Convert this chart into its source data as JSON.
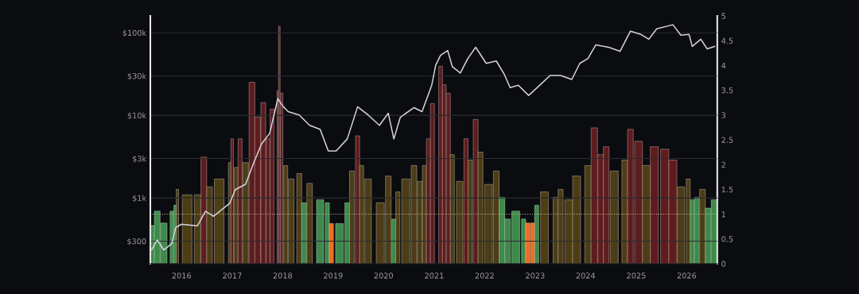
{
  "chart_data": {
    "type": "bar",
    "x": [
      "2015-05-29",
      "2015-07-09",
      "2015-08-25",
      "2015-10-22",
      "2015-11-20",
      "2016-01-01",
      "2016-04-25",
      "2016-06-22",
      "2016-08-19",
      "2016-12-14",
      "2017-01-23",
      "2017-04-08",
      "2017-06-05",
      "2017-08-02",
      "2017-09-29",
      "2017-11-27",
      "2018-01-06",
      "2018-02-10",
      "2018-05-01",
      "2018-07-15",
      "2018-09-29",
      "2018-11-27",
      "2019-01-23",
      "2019-04-13",
      "2019-06-27",
      "2019-09-11",
      "2019-12-02",
      "2020-02-04",
      "2020-03-15",
      "2020-05-01",
      "2020-08-08",
      "2020-10-05",
      "2020-12-14",
      "2021-01-12",
      "2021-02-16",
      "2021-04-08",
      "2021-05-12",
      "2021-07-09",
      "2021-09-01",
      "2021-10-28",
      "2022-01-12",
      "2022-03-26",
      "2022-05-24",
      "2022-07-04",
      "2022-09-01",
      "2022-11-15",
      "2023-02-04",
      "2023-04-19",
      "2023-07-04",
      "2023-09-23",
      "2023-11-20",
      "2024-01-18",
      "2024-03-15",
      "2024-06-16",
      "2024-09-06",
      "2024-11-20",
      "2025-02-04",
      "2025-04-02",
      "2025-05-29",
      "2025-09-23",
      "2025-11-20",
      "2026-01-18",
      "2026-02-10",
      "2026-04-13",
      "2026-05-29",
      "2026-07-21"
    ],
    "series": [
      {
        "type": "line",
        "color": "#d4d4d8",
        "values": [
          235,
          310,
          235,
          280,
          440,
          480,
          460,
          690,
          600,
          860,
          1260,
          1470,
          2640,
          4520,
          6050,
          15900,
          12700,
          11100,
          10100,
          7570,
          6780,
          3700,
          3700,
          5180,
          12700,
          10100,
          7570,
          10600,
          5180,
          9490,
          12400,
          11100,
          23200,
          40700,
          53300,
          61000,
          38900,
          32500,
          48800,
          66700,
          42600,
          45500,
          31100,
          21700,
          23200,
          17400,
          23200,
          30400,
          30400,
          27200,
          42600,
          48800,
          71300,
          66700,
          59600,
          104500,
          95500,
          83400,
          111700,
          125000,
          93300,
          95500,
          68300,
          83400,
          63800,
          68300
        ]
      },
      {
        "axis": "y2",
        "x": [
          "2015-05-29",
          "2015-07-09",
          "2015-08-25",
          "2015-10-22",
          "2015-11-15",
          "2015-12-02",
          "2016-02-10",
          "2016-04-25",
          "2016-06-10",
          "2016-07-21",
          "2016-09-29",
          "2016-12-14",
          "2017-01-01",
          "2017-01-29",
          "2017-02-27",
          "2017-04-08",
          "2017-05-24",
          "2017-07-04",
          "2017-08-14",
          "2017-09-18",
          "2017-10-16",
          "2017-11-27",
          "2017-12-08",
          "2017-12-25",
          "2018-01-23",
          "2018-03-04",
          "2018-05-01",
          "2018-06-05",
          "2018-07-15",
          "2018-09-29",
          "2018-11-20",
          "2018-12-19",
          "2019-02-16",
          "2019-04-13",
          "2019-05-17",
          "2019-06-27",
          "2019-07-26",
          "2019-09-11",
          "2019-12-08",
          "2020-02-04",
          "2020-03-15",
          "2020-04-13",
          "2020-06-10",
          "2020-08-08",
          "2020-09-18",
          "2020-10-22",
          "2020-11-20",
          "2020-12-19",
          "2021-02-16",
          "2021-03-15",
          "2021-04-13",
          "2021-05-12",
          "2021-07-04",
          "2021-08-19",
          "2021-09-18",
          "2021-10-28",
          "2021-12-02",
          "2022-01-29",
          "2022-03-26",
          "2022-05-06",
          "2022-06-16",
          "2022-08-14",
          "2022-10-10",
          "2022-11-09",
          "2022-12-14",
          "2023-01-12",
          "2023-03-09",
          "2023-05-29",
          "2023-07-04",
          "2023-09-01",
          "2023-10-28",
          "2024-01-18",
          "2024-03-04",
          "2024-04-19",
          "2024-05-29",
          "2024-07-26",
          "2024-10-10",
          "2024-11-20",
          "2025-01-18",
          "2025-03-15",
          "2025-05-12",
          "2025-07-26",
          "2025-09-23",
          "2025-11-20",
          "2026-01-12",
          "2026-02-10",
          "2026-03-15",
          "2026-04-25",
          "2026-06-05",
          "2026-07-21"
        ],
        "values": [
          0.77,
          1.06,
          0.82,
          1.06,
          1.18,
          1.5,
          1.39,
          1.39,
          2.15,
          1.55,
          1.71,
          2.04,
          2.52,
          1.94,
          2.52,
          2.04,
          3.66,
          2.96,
          3.25,
          2.52,
          3.12,
          3.49,
          4.79,
          3.44,
          1.98,
          1.71,
          1.82,
          1.23,
          1.62,
          1.29,
          1.23,
          0.81,
          0.81,
          1.23,
          1.87,
          2.58,
          1.98,
          1.71,
          1.23,
          1.77,
          0.9,
          1.45,
          1.71,
          1.98,
          1.66,
          1.98,
          2.52,
          3.23,
          3.98,
          3.61,
          3.44,
          2.2,
          1.66,
          2.52,
          2.09,
          2.91,
          2.25,
          1.6,
          1.87,
          1.34,
          0.9,
          1.06,
          0.9,
          0.82,
          0.82,
          1.18,
          1.45,
          1.34,
          1.5,
          1.29,
          1.77,
          1.98,
          2.74,
          2.2,
          2.36,
          1.87,
          2.09,
          2.71,
          2.47,
          1.98,
          2.36,
          2.31,
          2.09,
          1.55,
          1.71,
          1.29,
          1.34,
          1.5,
          1.12,
          1.29
        ],
        "colors": [
          "#3d8a4a",
          "#3d8a4a",
          "#3d8a4a",
          "#3d8a4a",
          "#3d8a4a",
          "#4d3d16",
          "#4d3d16",
          "#4d3d16",
          "#5e1c1e",
          "#4d3d16",
          "#4d3d16",
          "#4d3d16",
          "#5e1c1e",
          "#4d3d16",
          "#5e1c1e",
          "#4d3d16",
          "#5e1c1e",
          "#5e1c1e",
          "#5e1c1e",
          "#5e1c1e",
          "#5e1c1e",
          "#5e1c1e",
          "#5e1c1e",
          "#5e1c1e",
          "#4d3d16",
          "#4d3d16",
          "#4d3d16",
          "#3d8a4a",
          "#4d3d16",
          "#3d8a4a",
          "#3d8a4a",
          "#f06a1e",
          "#3d8a4a",
          "#3d8a4a",
          "#4d3d16",
          "#5e1c1e",
          "#4d3d16",
          "#4d3d16",
          "#4d3d16",
          "#4d3d16",
          "#3d8a4a",
          "#4d3d16",
          "#4d3d16",
          "#4d3d16",
          "#4d3d16",
          "#4d3d16",
          "#5e1c1e",
          "#5e1c1e",
          "#5e1c1e",
          "#5e1c1e",
          "#5e1c1e",
          "#4d3d16",
          "#4d3d16",
          "#5e1c1e",
          "#4d3d16",
          "#5e1c1e",
          "#4d3d16",
          "#4d3d16",
          "#4d3d16",
          "#3d8a4a",
          "#3d8a4a",
          "#3d8a4a",
          "#3d8a4a",
          "#f06a1e",
          "#f06a1e",
          "#3d8a4a",
          "#4d3d16",
          "#4d3d16",
          "#4d3d16",
          "#4d3d16",
          "#4d3d16",
          "#4d3d16",
          "#5e1c1e",
          "#5e1c1e",
          "#5e1c1e",
          "#4d3d16",
          "#4d3d16",
          "#5e1c1e",
          "#5e1c1e",
          "#4d3d16",
          "#5e1c1e",
          "#5e1c1e",
          "#5e1c1e",
          "#4d3d16",
          "#4d3d16",
          "#3d8a4a",
          "#3d8a4a",
          "#4d3d16",
          "#3d8a4a",
          "#3d8a4a"
        ]
      }
    ],
    "xlim": [
      "2015-05-20",
      "2026-08-10"
    ],
    "xticks": [
      {
        "value": "2016-01-01",
        "label": "2016"
      },
      {
        "value": "2017-01-01",
        "label": "2017"
      },
      {
        "value": "2018-01-01",
        "label": "2018"
      },
      {
        "value": "2019-01-01",
        "label": "2019"
      },
      {
        "value": "2020-01-01",
        "label": "2020"
      },
      {
        "value": "2021-01-01",
        "label": "2021"
      },
      {
        "value": "2022-01-01",
        "label": "2022"
      },
      {
        "value": "2023-01-01",
        "label": "2023"
      },
      {
        "value": "2024-01-01",
        "label": "2024"
      },
      {
        "value": "2025-01-01",
        "label": "2025"
      },
      {
        "value": "2026-01-01",
        "label": "2026"
      }
    ],
    "log": true,
    "ylim": [
      160,
      160000
    ],
    "yticks": [
      {
        "value": 300,
        "label": "$300"
      },
      {
        "value": 1000,
        "label": "$1k"
      },
      {
        "value": 3000,
        "label": "$3k"
      },
      {
        "value": 10000,
        "label": "$10k"
      },
      {
        "value": 30000,
        "label": "$30k"
      },
      {
        "value": 100000,
        "label": "$100k"
      }
    ],
    "y2lim": [
      0,
      5
    ],
    "y2ticks": [
      0,
      0.5,
      1,
      1.5,
      2,
      2.5,
      3,
      3.5,
      4,
      4.5,
      5
    ],
    "grid": "y",
    "ref_lines": [
      {
        "axis": "y2",
        "value": 1,
        "color": "#c8b888",
        "line_style": "dotted"
      }
    ]
  }
}
